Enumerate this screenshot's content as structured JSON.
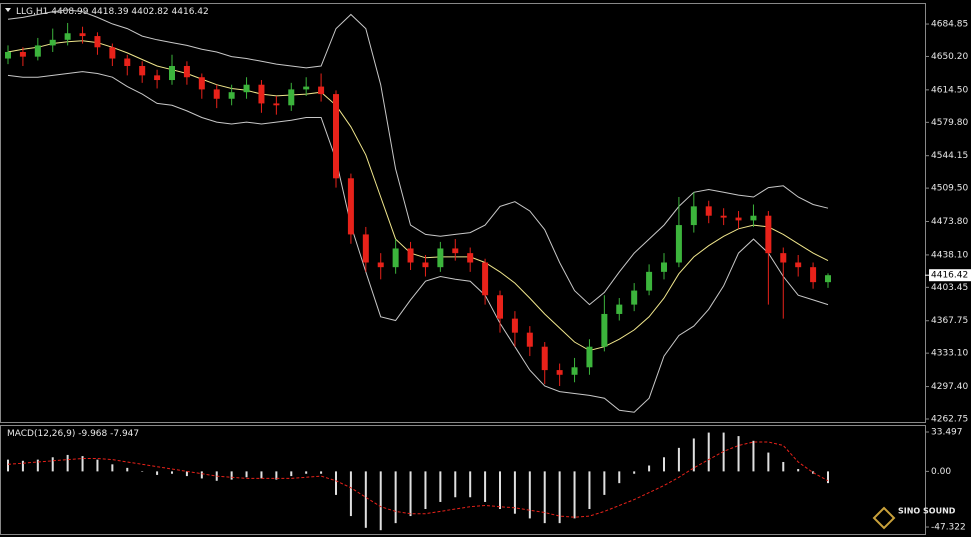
{
  "chart_data": [
    {
      "type": "candlestick",
      "title": "LLG,H1",
      "open": [
        4648,
        4655,
        4650,
        4662,
        4668,
        4675,
        4672,
        4660,
        4648,
        4640,
        4630,
        4625,
        4640,
        4628,
        4615,
        4605,
        4612,
        4620,
        4600,
        4598,
        4615,
        4618,
        4610,
        4520,
        4460,
        4430,
        4425,
        4445,
        4430,
        4425,
        4445,
        4440,
        4430,
        4395,
        4370,
        4355,
        4340,
        4315,
        4310,
        4318,
        4340,
        4375,
        4385,
        4400,
        4420,
        4430,
        4470,
        4490,
        4480,
        4478,
        4475,
        4480,
        4440,
        4430,
        4425,
        4408.99
      ],
      "high": [
        4662,
        4660,
        4670,
        4680,
        4686,
        4682,
        4676,
        4664,
        4652,
        4645,
        4636,
        4652,
        4645,
        4632,
        4620,
        4620,
        4628,
        4625,
        4608,
        4622,
        4628,
        4632,
        4614,
        4525,
        4468,
        4440,
        4455,
        4452,
        4438,
        4452,
        4455,
        4446,
        4434,
        4400,
        4378,
        4362,
        4345,
        4322,
        4328,
        4348,
        4395,
        4392,
        4408,
        4428,
        4440,
        4500,
        4505,
        4496,
        4488,
        4485,
        4492,
        4485,
        4446,
        4438,
        4430,
        4418.39
      ],
      "low": [
        4642,
        4640,
        4646,
        4655,
        4662,
        4664,
        4652,
        4640,
        4630,
        4622,
        4616,
        4620,
        4620,
        4605,
        4595,
        4598,
        4605,
        4590,
        4588,
        4592,
        4608,
        4602,
        4510,
        4450,
        4420,
        4412,
        4418,
        4422,
        4415,
        4420,
        4432,
        4420,
        4385,
        4355,
        4340,
        4330,
        4300,
        4298,
        4302,
        4310,
        4335,
        4368,
        4378,
        4395,
        4412,
        4425,
        4462,
        4472,
        4470,
        4466,
        4468,
        4385,
        4370,
        4415,
        4402,
        4402.82
      ],
      "close": [
        4655,
        4650,
        4662,
        4668,
        4675,
        4672,
        4660,
        4648,
        4640,
        4630,
        4625,
        4640,
        4628,
        4615,
        4605,
        4612,
        4620,
        4600,
        4598,
        4615,
        4618,
        4610,
        4520,
        4460,
        4430,
        4425,
        4445,
        4430,
        4425,
        4445,
        4440,
        4430,
        4395,
        4370,
        4355,
        4340,
        4315,
        4310,
        4318,
        4340,
        4375,
        4385,
        4400,
        4420,
        4430,
        4470,
        4490,
        4480,
        4478,
        4475,
        4480,
        4440,
        4430,
        4425,
        4409,
        4416.42
      ],
      "up_color": "#3cb43c",
      "down_color": "#e8221a",
      "lines": [
        {
          "color": "#c8c8c8",
          "values": [
            4690,
            4692,
            4695,
            4698,
            4700,
            4698,
            4692,
            4685,
            4680,
            4672,
            4668,
            4665,
            4662,
            4658,
            4655,
            4650,
            4648,
            4645,
            4642,
            4640,
            4638,
            4640,
            4680,
            4695,
            4680,
            4620,
            4530,
            4470,
            4460,
            4458,
            4460,
            4462,
            4470,
            4490,
            4495,
            4485,
            4465,
            4430,
            4400,
            4385,
            4398,
            4420,
            4440,
            4455,
            4470,
            4490,
            4505,
            4508,
            4505,
            4502,
            4500,
            4510,
            4512,
            4500,
            4492,
            4488
          ]
        },
        {
          "color": "#c8c8c8",
          "values": [
            4630,
            4628,
            4628,
            4630,
            4632,
            4634,
            4632,
            4628,
            4618,
            4610,
            4600,
            4598,
            4592,
            4585,
            4580,
            4578,
            4580,
            4578,
            4580,
            4582,
            4585,
            4585,
            4540,
            4470,
            4420,
            4372,
            4368,
            4390,
            4410,
            4415,
            4412,
            4410,
            4395,
            4365,
            4340,
            4315,
            4298,
            4292,
            4290,
            4288,
            4285,
            4272,
            4270,
            4285,
            4330,
            4352,
            4362,
            4380,
            4405,
            4440,
            4455,
            4440,
            4415,
            4395,
            4390,
            4385
          ]
        },
        {
          "color": "#f0e68c",
          "values": [
            4655,
            4658,
            4660,
            4664,
            4666,
            4667,
            4665,
            4660,
            4654,
            4647,
            4640,
            4636,
            4632,
            4626,
            4620,
            4616,
            4614,
            4610,
            4608,
            4609,
            4610,
            4612,
            4598,
            4575,
            4545,
            4500,
            4455,
            4440,
            4435,
            4436,
            4436,
            4436,
            4430,
            4420,
            4408,
            4392,
            4375,
            4360,
            4345,
            4336,
            4340,
            4348,
            4358,
            4372,
            4392,
            4418,
            4436,
            4448,
            4458,
            4466,
            4470,
            4468,
            4460,
            4450,
            4440,
            4432
          ]
        }
      ],
      "ylim": [
        4260.6,
        4705.2
      ],
      "yticks": [
        4684.85,
        {
          "value": 4650.2,
          "label": "4650.20"
        },
        {
          "value": 4614.5,
          "label": "4614.50"
        },
        {
          "value": 4579.8,
          "label": "4579.80"
        },
        4544.15,
        {
          "value": 4509.5,
          "label": "4509.50"
        },
        {
          "value": 4473.8,
          "label": "4473.80"
        },
        {
          "value": 4438.1,
          "label": "4438.10"
        },
        4403.45,
        4367.75,
        {
          "value": 4333.1,
          "label": "4333.10"
        },
        {
          "value": 4297.4,
          "label": "4297.40"
        },
        4262.75
      ]
    },
    {
      "type": "macd",
      "title": "MACD(12,26,9)",
      "histogram": [
        10,
        9,
        10,
        12,
        14,
        13,
        10,
        6,
        3,
        0,
        -3,
        -2,
        -4,
        -6,
        -8,
        -7,
        -5,
        -6,
        -7,
        -4,
        -2,
        -2,
        -20,
        -38,
        -48,
        -50,
        -44,
        -38,
        -32,
        -26,
        -22,
        -22,
        -26,
        -32,
        -36,
        -40,
        -44,
        -44,
        -40,
        -32,
        -20,
        -10,
        -2,
        5,
        12,
        20,
        28,
        33,
        33,
        30,
        26,
        16,
        8,
        2,
        -2,
        -9.968
      ],
      "signal": [
        6,
        7,
        8,
        9,
        10,
        11,
        11,
        10,
        8,
        6,
        4,
        2,
        0,
        -2,
        -4,
        -5,
        -6,
        -6,
        -6,
        -6,
        -5,
        -4,
        -8,
        -14,
        -22,
        -30,
        -34,
        -36,
        -36,
        -34,
        -32,
        -30,
        -29,
        -30,
        -31,
        -33,
        -35,
        -38,
        -39,
        -38,
        -34,
        -29,
        -24,
        -18,
        -12,
        -5,
        3,
        10,
        17,
        22,
        25,
        25,
        22,
        8,
        -1,
        -7.947
      ],
      "histogram_color": "#e0e0e0",
      "signal_color": "#e8221a",
      "ylim": [
        -52.4,
        39.45
      ],
      "yticks": [
        33.497,
        {
          "value": 0,
          "label": "0.00"
        },
        -47.322
      ]
    }
  ],
  "logo": "SINO SOUND"
}
